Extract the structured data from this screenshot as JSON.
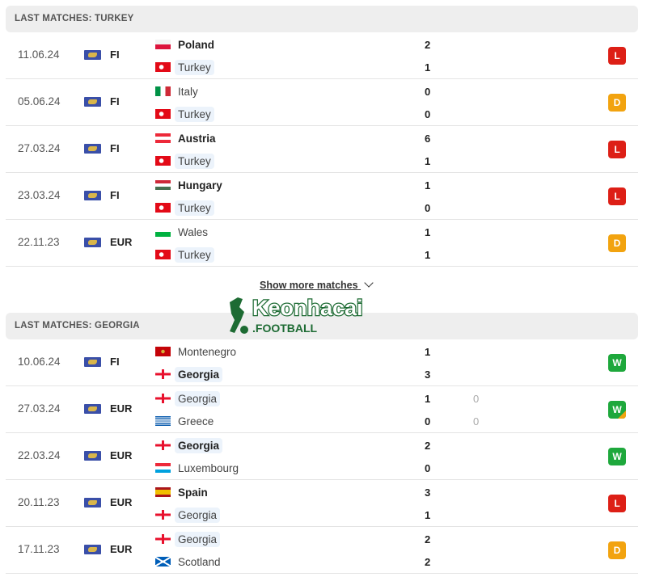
{
  "colors": {
    "L": "#dd1f16",
    "D": "#f2a30f",
    "W": "#1ea83c"
  },
  "sections": [
    {
      "title": "LAST MATCHES: TURKEY",
      "matches": [
        {
          "date": "11.06.24",
          "competition": "FI",
          "home": {
            "name": "Poland",
            "flag": "poland",
            "bold": true,
            "focus": false
          },
          "away": {
            "name": "Turkey",
            "flag": "turkey",
            "bold": false,
            "focus": true
          },
          "home_score": "2",
          "away_score": "1",
          "result": "L"
        },
        {
          "date": "05.06.24",
          "competition": "FI",
          "home": {
            "name": "Italy",
            "flag": "italy",
            "bold": false,
            "focus": false
          },
          "away": {
            "name": "Turkey",
            "flag": "turkey",
            "bold": false,
            "focus": true
          },
          "home_score": "0",
          "away_score": "0",
          "result": "D"
        },
        {
          "date": "27.03.24",
          "competition": "FI",
          "home": {
            "name": "Austria",
            "flag": "austria",
            "bold": true,
            "focus": false
          },
          "away": {
            "name": "Turkey",
            "flag": "turkey",
            "bold": false,
            "focus": true
          },
          "home_score": "6",
          "away_score": "1",
          "result": "L"
        },
        {
          "date": "23.03.24",
          "competition": "FI",
          "home": {
            "name": "Hungary",
            "flag": "hungary",
            "bold": true,
            "focus": false
          },
          "away": {
            "name": "Turkey",
            "flag": "turkey",
            "bold": false,
            "focus": true
          },
          "home_score": "1",
          "away_score": "0",
          "result": "L"
        },
        {
          "date": "22.11.23",
          "competition": "EUR",
          "home": {
            "name": "Wales",
            "flag": "wales",
            "bold": false,
            "focus": false
          },
          "away": {
            "name": "Turkey",
            "flag": "turkey",
            "bold": false,
            "focus": true
          },
          "home_score": "1",
          "away_score": "1",
          "result": "D"
        }
      ]
    },
    {
      "title": "LAST MATCHES: GEORGIA",
      "matches": [
        {
          "date": "10.06.24",
          "competition": "FI",
          "home": {
            "name": "Montenegro",
            "flag": "montenegro",
            "bold": false,
            "focus": false
          },
          "away": {
            "name": "Georgia",
            "flag": "georgia",
            "bold": true,
            "focus": true
          },
          "home_score": "1",
          "away_score": "3",
          "result": "W"
        },
        {
          "date": "27.03.24",
          "competition": "EUR",
          "home": {
            "name": "Georgia",
            "flag": "georgia",
            "bold": false,
            "focus": true
          },
          "away": {
            "name": "Greece",
            "flag": "greece",
            "bold": false,
            "focus": false
          },
          "home_score": "1",
          "away_score": "0",
          "home_pen": "0",
          "away_pen": "0",
          "result": "W",
          "result_corner": "D"
        },
        {
          "date": "22.03.24",
          "competition": "EUR",
          "home": {
            "name": "Georgia",
            "flag": "georgia",
            "bold": true,
            "focus": true
          },
          "away": {
            "name": "Luxembourg",
            "flag": "luxembourg",
            "bold": false,
            "focus": false
          },
          "home_score": "2",
          "away_score": "0",
          "result": "W"
        },
        {
          "date": "20.11.23",
          "competition": "EUR",
          "home": {
            "name": "Spain",
            "flag": "spain",
            "bold": true,
            "focus": false
          },
          "away": {
            "name": "Georgia",
            "flag": "georgia",
            "bold": false,
            "focus": true
          },
          "home_score": "3",
          "away_score": "1",
          "result": "L"
        },
        {
          "date": "17.11.23",
          "competition": "EUR",
          "home": {
            "name": "Georgia",
            "flag": "georgia",
            "bold": false,
            "focus": true
          },
          "away": {
            "name": "Scotland",
            "flag": "scotland",
            "bold": false,
            "focus": false
          },
          "home_score": "2",
          "away_score": "2",
          "result": "D"
        }
      ]
    }
  ],
  "show_more": "Show more matches",
  "watermark": "Keonhacai .FOOTBALL"
}
